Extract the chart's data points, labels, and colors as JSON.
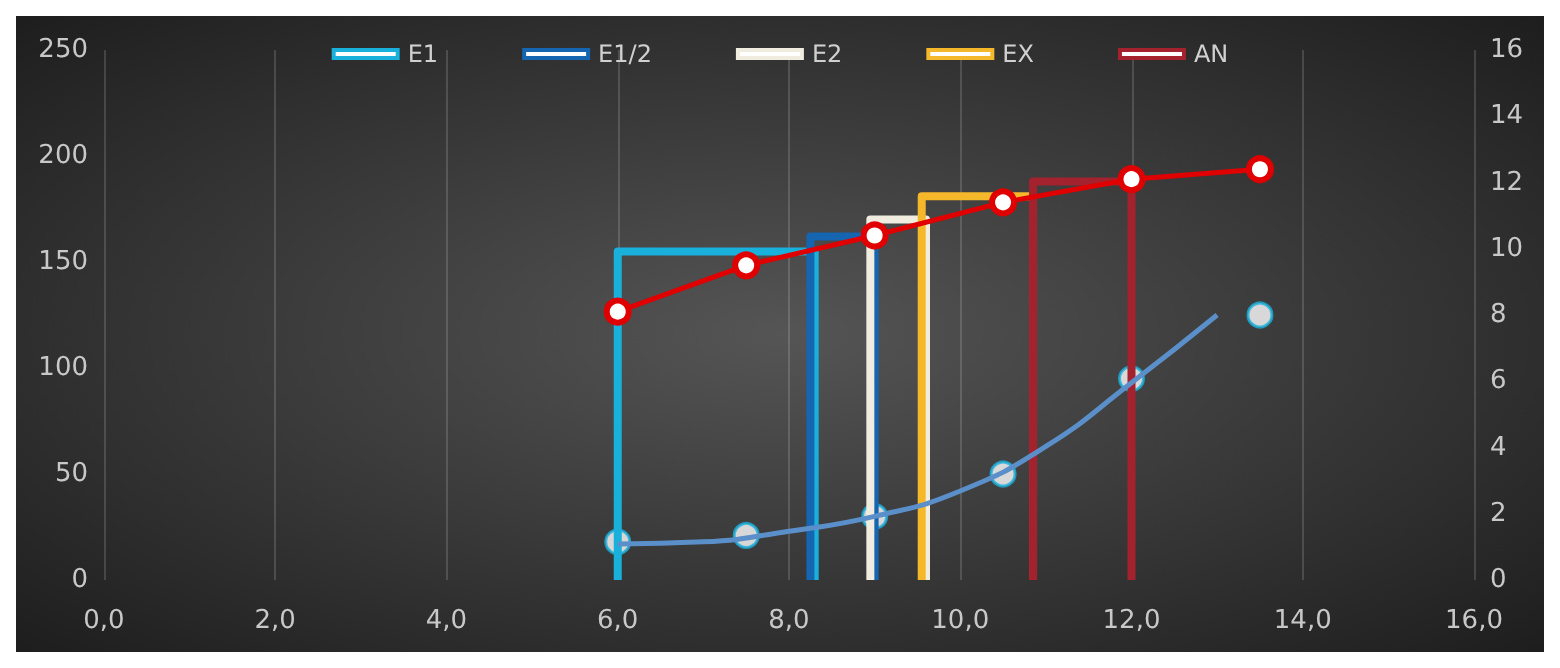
{
  "chart_data": {
    "type": "line",
    "legend": "top",
    "grid": "x",
    "xlim": [
      0,
      16
    ],
    "xticks": [
      {
        "value": 0,
        "label": "0,0"
      },
      {
        "value": 2,
        "label": "2,0"
      },
      {
        "value": 4,
        "label": "4,0"
      },
      {
        "value": 6,
        "label": "6,0"
      },
      {
        "value": 8,
        "label": "8,0"
      },
      {
        "value": 10,
        "label": "10,0"
      },
      {
        "value": 12,
        "label": "12,0"
      },
      {
        "value": 14,
        "label": "14,0"
      },
      {
        "value": 16,
        "label": "16,0"
      }
    ],
    "ylim": [
      0,
      250
    ],
    "yticks": [
      0,
      50,
      100,
      150,
      200,
      250
    ],
    "y2lim": [
      0,
      16
    ],
    "y2ticks": [
      0,
      2,
      4,
      6,
      8,
      10,
      12,
      14,
      16
    ],
    "series": [
      {
        "name": "E1",
        "color": "#1ab0dc",
        "marker": "none",
        "x": [
          6,
          6,
          8.3,
          8.3
        ],
        "values": [
          0,
          155,
          155,
          0
        ]
      },
      {
        "name": "E1/2",
        "color": "#1565b0",
        "marker": "none",
        "x": [
          8.25,
          8.25,
          9,
          9
        ],
        "values": [
          0,
          162,
          162,
          0
        ]
      },
      {
        "name": "E2",
        "color": "#f0ece0",
        "marker": "none",
        "x": [
          8.95,
          8.95,
          9.6,
          9.6
        ],
        "values": [
          0,
          170,
          170,
          0
        ]
      },
      {
        "name": "EX",
        "color": "#f5b82a",
        "marker": "none",
        "x": [
          9.55,
          9.55,
          10.85,
          10.85
        ],
        "values": [
          0,
          181,
          181,
          0
        ]
      },
      {
        "name": "AN",
        "color": "#a3222e",
        "marker": "none",
        "x": [
          10.85,
          10.85,
          12,
          12
        ],
        "values": [
          0,
          188,
          188,
          0
        ]
      },
      {
        "color": "#5b8fc9",
        "marker": "none",
        "x": [
          6,
          7,
          8,
          9,
          10,
          11,
          12,
          13
        ],
        "values": [
          17,
          18,
          23,
          30,
          42,
          63,
          93,
          125
        ]
      },
      {
        "color": "#e00000",
        "axis": "y2",
        "marker": "circle",
        "x": [
          6,
          7.5,
          9,
          10.5,
          12,
          13.5
        ],
        "values": [
          8.1,
          9.5,
          10.4,
          11.4,
          12.1,
          12.4
        ]
      },
      {
        "type": "scatter",
        "color": "#ffffff",
        "marker": "circle",
        "x": [
          6,
          7.5,
          9,
          10.5,
          12,
          13.5
        ],
        "values": [
          18,
          21,
          30,
          50,
          95,
          125
        ]
      }
    ]
  }
}
